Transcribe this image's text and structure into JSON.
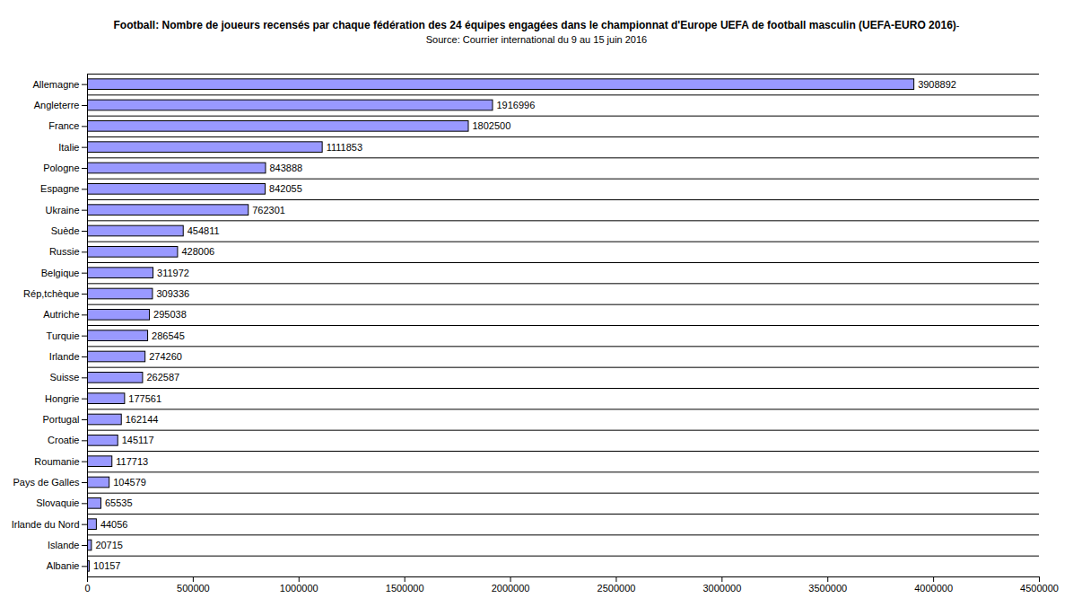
{
  "chart_data": {
    "type": "bar",
    "title": "Football: Nombre de joueurs recensés par chaque fédération des 24 équipes engagées dans le championnat d'Europe UEFA de football masculin (UEFA-EURO 2016)",
    "subtitle": "-Source: Courrier international du 9 au 15 juin 2016",
    "categories": [
      "Allemagne",
      "Angleterre",
      "France",
      "Italie",
      "Pologne",
      "Espagne",
      "Ukraine",
      "Suède",
      "Russie",
      "Belgique",
      "Rép,tchèque",
      "Autriche",
      "Turquie",
      "Irlande",
      "Suisse",
      "Hongrie",
      "Portugal",
      "Croatie",
      "Roumanie",
      "Pays de Galles",
      "Slovaquie",
      "Irlande du Nord",
      "Islande",
      "Albanie"
    ],
    "values": [
      3908892,
      1916996,
      1802500,
      1111853,
      843888,
      842055,
      762301,
      454811,
      428006,
      311972,
      309336,
      295038,
      286545,
      274260,
      262587,
      177561,
      162144,
      145117,
      117713,
      104579,
      65535,
      44056,
      20715,
      10157
    ],
    "color": "#9999ff",
    "orientation": "horizontal",
    "data_labels": true,
    "grid": true,
    "xlim": [
      0,
      4500000
    ],
    "xticks": [
      0,
      500000,
      1000000,
      1500000,
      2000000,
      2500000,
      3000000,
      3500000,
      4000000,
      4500000
    ]
  }
}
